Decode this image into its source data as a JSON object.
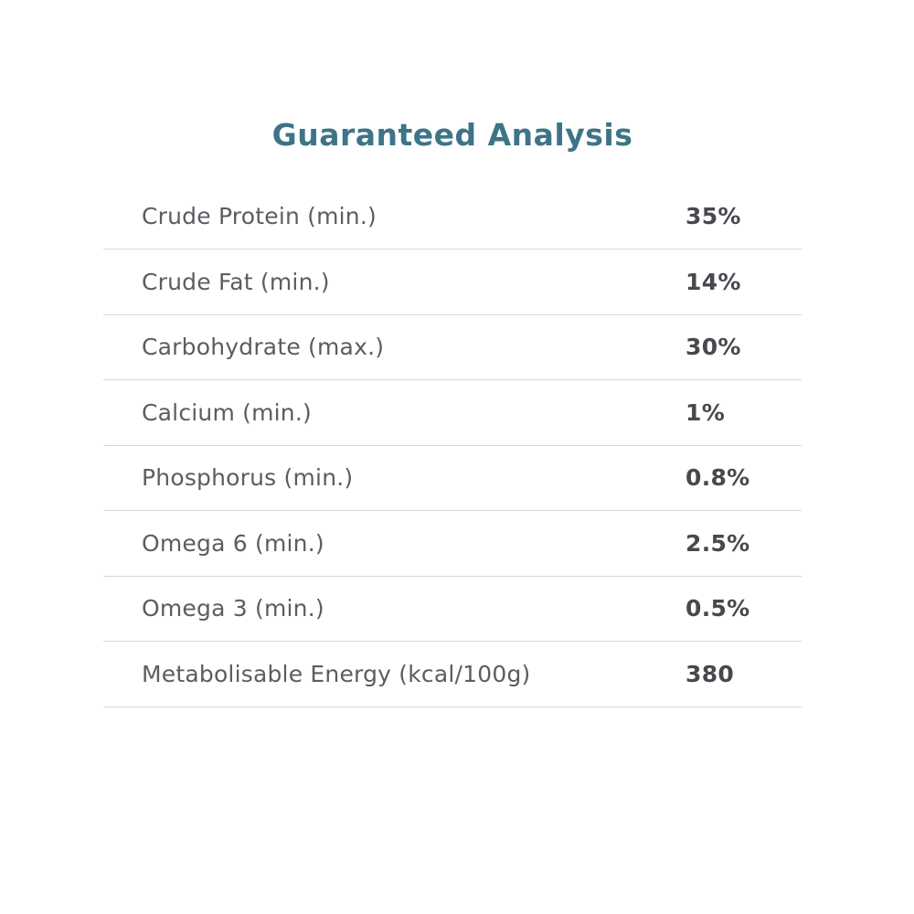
{
  "header": {
    "title": "Guaranteed Analysis"
  },
  "table": {
    "rows": [
      {
        "label": "Crude Protein (min.)",
        "value": "35%"
      },
      {
        "label": "Crude Fat (min.)",
        "value": "14%"
      },
      {
        "label": "Carbohydrate (max.)",
        "value": "30%"
      },
      {
        "label": "Calcium (min.)",
        "value": "1%"
      },
      {
        "label": "Phosphorus (min.)",
        "value": "0.8%"
      },
      {
        "label": "Omega 6 (min.)",
        "value": "2.5%"
      },
      {
        "label": "Omega 3 (min.)",
        "value": "0.5%"
      },
      {
        "label": "Metabolisable Energy (kcal/100g)",
        "value": "380"
      }
    ]
  },
  "colors": {
    "title": "#3E7487",
    "label": "#5A5D62",
    "value": "#46494D",
    "divider": "#D8D8D8",
    "background": "#FFFFFF"
  }
}
